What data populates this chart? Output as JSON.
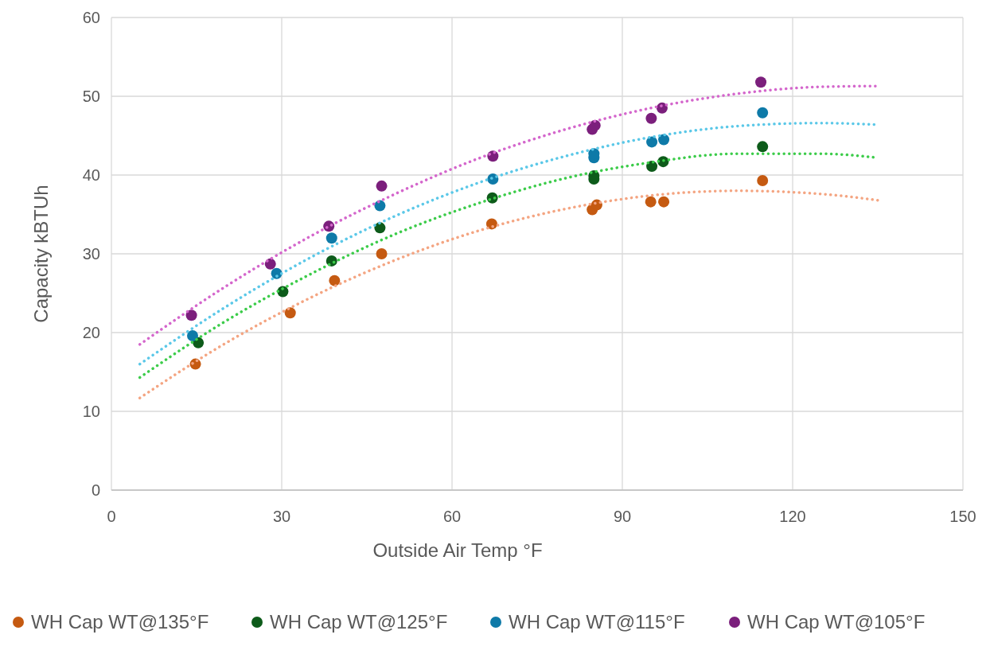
{
  "chart_data": {
    "type": "scatter",
    "xlabel": "Outside Air Temp °F",
    "ylabel": "Capacity kBTUh",
    "xlim": [
      0,
      150
    ],
    "xticks": [
      0,
      30,
      60,
      90,
      120,
      150
    ],
    "ylim": [
      0,
      60
    ],
    "yticks": [
      0,
      10,
      20,
      30,
      40,
      50,
      60
    ],
    "grid": true,
    "legend": "bottom",
    "series": [
      {
        "name": "WH Cap WT@135°F",
        "marker": "circle",
        "color": "#c55a11",
        "x": [
          14.8,
          31.5,
          39.3,
          47.6,
          67,
          84.7,
          85.5,
          95,
          97.3,
          114.7
        ],
        "values": [
          16.0,
          22.5,
          26.6,
          30.0,
          33.8,
          35.6,
          36.2,
          36.6,
          36.6,
          39.3
        ]
      },
      {
        "name": "WH Cap WT@125°F",
        "marker": "circle",
        "color": "#0d5b1a",
        "x": [
          15.3,
          30.2,
          38.8,
          47.3,
          67.1,
          85,
          85,
          95.2,
          97.2,
          114.7
        ],
        "values": [
          18.7,
          25.2,
          29.1,
          33.3,
          37.1,
          39.5,
          39.9,
          41.1,
          41.7,
          43.6
        ]
      },
      {
        "name": "WH Cap WT@115°F",
        "marker": "circle",
        "color": "#0e7aa8",
        "x": [
          14.3,
          29.1,
          38.8,
          47.3,
          67.2,
          85,
          85,
          95.2,
          97.3,
          114.7
        ],
        "values": [
          19.6,
          27.5,
          32.0,
          36.1,
          39.5,
          42.2,
          42.7,
          44.2,
          44.5,
          47.9
        ]
      },
      {
        "name": "WH Cap WT@105°F",
        "marker": "circle",
        "color": "#7b1f7c",
        "x": [
          14.1,
          28,
          38.3,
          47.6,
          67.2,
          84.7,
          85.2,
          95.1,
          97,
          114.4
        ],
        "values": [
          22.2,
          28.7,
          33.5,
          38.6,
          42.4,
          45.8,
          46.3,
          47.2,
          48.5,
          51.8
        ]
      },
      {
        "type": "line",
        "line_style": "dotted",
        "color": "#f4a582",
        "x": [
          5,
          20,
          35,
          50,
          65,
          80,
          95,
          110,
          125,
          135
        ],
        "values": [
          11.7,
          18.6,
          24.4,
          29.2,
          33.0,
          35.7,
          37.4,
          38.0,
          37.6,
          36.8
        ]
      },
      {
        "type": "line",
        "line_style": "dotted",
        "color": "#3ccc4a",
        "x": [
          5,
          20,
          35,
          50,
          65,
          80,
          95,
          110,
          125,
          135
        ],
        "values": [
          14.3,
          21.4,
          27.4,
          32.5,
          36.5,
          39.6,
          41.6,
          42.7,
          42.7,
          42.2
        ]
      },
      {
        "type": "line",
        "line_style": "dotted",
        "color": "#5bc8e8",
        "x": [
          5,
          20,
          35,
          50,
          65,
          80,
          95,
          110,
          125,
          135
        ],
        "values": [
          16.0,
          23.2,
          29.5,
          34.8,
          39.1,
          42.4,
          44.8,
          46.2,
          46.6,
          46.4
        ]
      },
      {
        "type": "line",
        "line_style": "dotted",
        "color": "#d466cc",
        "x": [
          5,
          20,
          35,
          50,
          65,
          80,
          95,
          110,
          125,
          135
        ],
        "values": [
          18.5,
          25.8,
          32.2,
          37.6,
          42.2,
          45.8,
          48.5,
          50.3,
          51.2,
          51.3
        ]
      }
    ]
  }
}
